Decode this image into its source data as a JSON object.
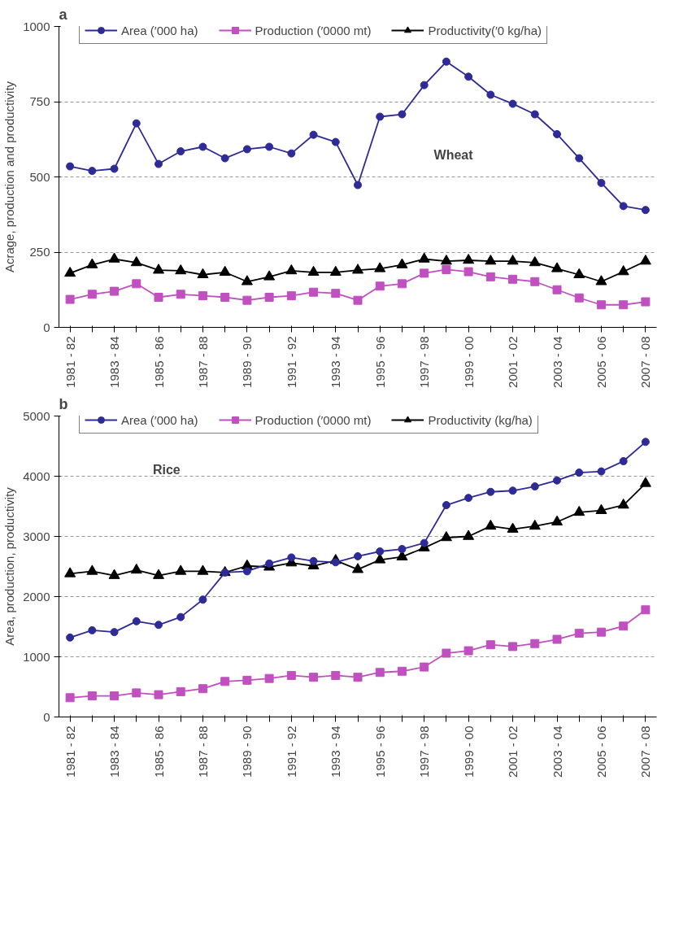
{
  "chart_data": [
    {
      "type": "line",
      "title": "a",
      "ylabel": "Acrage, production and productivity",
      "categories": [
        "1981 - 82",
        null,
        "1983 - 84",
        null,
        "1985 - 86",
        null,
        "1987 - 88",
        null,
        "1989 - 90",
        null,
        "1991 - 92",
        null,
        "1993 - 94",
        null,
        "1995 - 96",
        null,
        "1997 - 98",
        null,
        "1999 - 00",
        null,
        "2001 - 02",
        null,
        "2003 - 04",
        null,
        "2005 - 06",
        null,
        "2007 - 08"
      ],
      "series": [
        {
          "name": "Area (′000 ha)",
          "color": "#2e2a96",
          "marker": "circle",
          "values": [
            535,
            520,
            527,
            678,
            543,
            585,
            600,
            562,
            592,
            600,
            578,
            640,
            616,
            473,
            700,
            708,
            805,
            883,
            833,
            773,
            743,
            708,
            642,
            562,
            480,
            403,
            390
          ]
        },
        {
          "name": "Production (′0000 mt)",
          "color": "#c050c0",
          "marker": "square",
          "values": [
            93,
            110,
            120,
            145,
            100,
            110,
            105,
            100,
            90,
            100,
            105,
            117,
            113,
            90,
            137,
            145,
            180,
            192,
            185,
            168,
            160,
            152,
            125,
            98,
            75,
            75,
            85
          ]
        },
        {
          "name": "Productivity(′0 kg/ha)",
          "color": "#000000",
          "marker": "triangle",
          "values": [
            180,
            208,
            227,
            215,
            190,
            188,
            175,
            183,
            152,
            168,
            188,
            183,
            183,
            190,
            195,
            208,
            227,
            220,
            223,
            220,
            220,
            215,
            195,
            175,
            152,
            185,
            220
          ]
        }
      ],
      "ylim": [
        0,
        1000
      ],
      "yticks": [
        0,
        250,
        500,
        750,
        1000
      ],
      "grid": "y",
      "legend": "top",
      "annotations": [
        "Wheat"
      ]
    },
    {
      "type": "line",
      "title": "b",
      "ylabel": "Area, production, productivity",
      "categories": [
        "1981 - 82",
        null,
        "1983 - 84",
        null,
        "1985 - 86",
        null,
        "1987 - 88",
        null,
        "1989 - 90",
        null,
        "1991 - 92",
        null,
        "1993 - 94",
        null,
        "1995 - 96",
        null,
        "1997 - 98",
        null,
        "1999 - 00",
        null,
        "2001 - 02",
        null,
        "2003 - 04",
        null,
        "2005 - 06",
        null,
        "2007 - 08"
      ],
      "series": [
        {
          "name": "Area (′000 ha)",
          "color": "#2e2a96",
          "marker": "circle",
          "values": [
            1320,
            1440,
            1410,
            1590,
            1530,
            1660,
            1950,
            2400,
            2420,
            2550,
            2650,
            2590,
            2570,
            2670,
            2750,
            2790,
            2890,
            3520,
            3640,
            3740,
            3760,
            3830,
            3930,
            4060,
            4080,
            4250,
            4570
          ]
        },
        {
          "name": "Production (′0000 mt)",
          "color": "#c050c0",
          "marker": "square",
          "values": [
            320,
            350,
            350,
            400,
            370,
            420,
            470,
            590,
            610,
            640,
            690,
            660,
            690,
            660,
            740,
            760,
            830,
            1060,
            1100,
            1200,
            1170,
            1220,
            1290,
            1390,
            1410,
            1510,
            1780
          ]
        },
        {
          "name": "Productivity (kg/ha)",
          "color": "#000000",
          "marker": "triangle",
          "values": [
            2380,
            2420,
            2350,
            2440,
            2350,
            2420,
            2420,
            2400,
            2510,
            2490,
            2560,
            2510,
            2600,
            2450,
            2610,
            2660,
            2810,
            2980,
            3000,
            3170,
            3120,
            3170,
            3240,
            3400,
            3430,
            3520,
            3880
          ]
        }
      ],
      "ylim": [
        0,
        5000
      ],
      "yticks": [
        0,
        1000,
        2000,
        3000,
        4000,
        5000
      ],
      "grid": "y",
      "legend": "top",
      "annotations": [
        "Rice"
      ]
    }
  ]
}
